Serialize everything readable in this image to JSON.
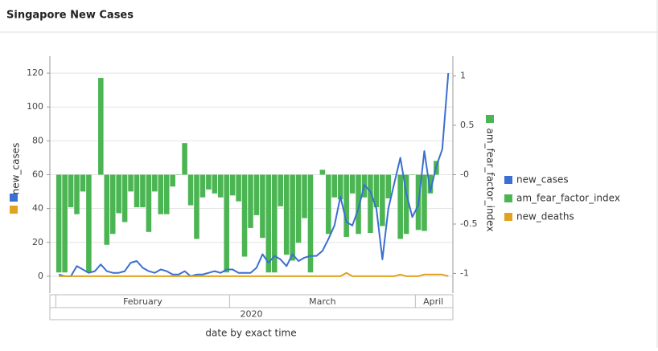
{
  "chart_data": {
    "type": "combo",
    "title": "Singapore New Cases",
    "x_label": "date by exact time",
    "x_group_label": "2020",
    "y_label": "new_cases",
    "y2_label": "am_fear_factor_index",
    "categories": [
      null,
      "February",
      "February",
      "February",
      "February",
      "February",
      "February",
      "February",
      "February",
      "February",
      "February",
      "February",
      "February",
      "February",
      "February",
      "February",
      "February",
      "February",
      "February",
      "February",
      "February",
      "February",
      "February",
      "February",
      "February",
      "February",
      "February",
      "February",
      "February",
      "February",
      "March",
      "March",
      "March",
      "March",
      "March",
      "March",
      "March",
      "March",
      "March",
      "March",
      "March",
      "March",
      "March",
      "March",
      "March",
      "March",
      "March",
      "March",
      "March",
      "March",
      "March",
      "March",
      "March",
      "March",
      "March",
      "March",
      "March",
      "March",
      "March",
      "March",
      "March",
      "April",
      "April",
      "April",
      "April",
      "April",
      "April"
    ],
    "series": [
      {
        "name": "new_cases",
        "type": "line",
        "axis": "y",
        "color": "#3b6fd1",
        "values": [
          null,
          1,
          0,
          0,
          6,
          4,
          2,
          3,
          7,
          3,
          2,
          2,
          3,
          8,
          9,
          5,
          3,
          2,
          4,
          3,
          1,
          1,
          3,
          0,
          1,
          1,
          2,
          3,
          2,
          4,
          4,
          2,
          2,
          2,
          5,
          13,
          8,
          12,
          10,
          6,
          13,
          9,
          11,
          12,
          12,
          15,
          22,
          30,
          47,
          32,
          30,
          40,
          54,
          50,
          40,
          10,
          40,
          55,
          70,
          49,
          35,
          42,
          74,
          50,
          65,
          75,
          120
        ]
      },
      {
        "name": "am_fear_factor_index",
        "type": "bar",
        "axis": "y2",
        "color": "#4cb553",
        "values": [
          null,
          -0.99,
          -0.99,
          -0.33,
          -0.4,
          -0.17,
          -0.99,
          null,
          0.98,
          -0.71,
          -0.6,
          -0.39,
          -0.48,
          -0.17,
          -0.33,
          -0.33,
          -0.58,
          -0.17,
          -0.4,
          -0.4,
          -0.12,
          0,
          0.32,
          -0.31,
          -0.65,
          -0.23,
          -0.15,
          -0.19,
          -0.23,
          -0.99,
          -0.21,
          -0.27,
          -0.83,
          -0.54,
          -0.41,
          -0.64,
          -0.99,
          -0.99,
          -0.32,
          -0.81,
          -0.87,
          -0.69,
          -0.44,
          -0.99,
          null,
          0.05,
          -0.6,
          -0.23,
          -0.25,
          -0.63,
          -0.19,
          -0.6,
          -0.23,
          -0.59,
          -0.33,
          -0.52,
          -0.24,
          0,
          -0.65,
          -0.6,
          0,
          -0.56,
          -0.57,
          -0.19,
          0.14,
          null,
          null
        ]
      },
      {
        "name": "new_deaths",
        "type": "line",
        "axis": "y",
        "color": "#e0a21f",
        "values": [
          null,
          0,
          0,
          0,
          0,
          0,
          0,
          0,
          0,
          0,
          0,
          0,
          0,
          0,
          0,
          0,
          0,
          0,
          0,
          0,
          0,
          0,
          0,
          0,
          0,
          0,
          0,
          0,
          0,
          0,
          0,
          0,
          0,
          0,
          0,
          0,
          0,
          0,
          0,
          0,
          0,
          0,
          0,
          0,
          0,
          0,
          0,
          0,
          0,
          2,
          0,
          0,
          0,
          0,
          0,
          0,
          0,
          0,
          1,
          0,
          0,
          0,
          1,
          1,
          1,
          1,
          0
        ]
      }
    ],
    "ylim": [
      -10,
      130
    ],
    "yticks": [
      0,
      20,
      40,
      60,
      80,
      100,
      120
    ],
    "y2lim": [
      -1.2,
      1.2
    ],
    "y2ticks": [
      -1,
      -0.5,
      {
        "value": 0,
        "label": "-0"
      },
      0.5,
      1
    ],
    "grid": true,
    "legend": "right"
  }
}
